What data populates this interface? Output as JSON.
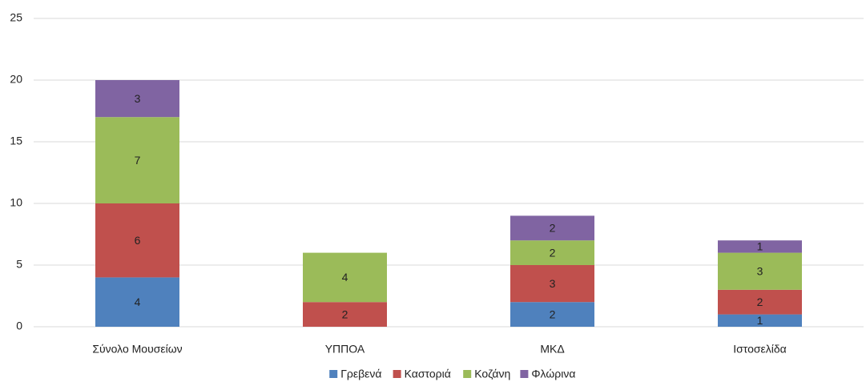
{
  "chart_data": {
    "type": "stacked_bar",
    "categories": [
      "Σύνολο Μουσείων",
      "ΥΠΠΟΑ",
      "ΜΚΔ",
      "Ιστοσελίδα"
    ],
    "series": [
      {
        "name": "Γρεβενά",
        "color": "#4f81bd",
        "values": [
          4,
          0,
          2,
          1
        ]
      },
      {
        "name": "Καστοριά",
        "color": "#c0504d",
        "values": [
          6,
          2,
          3,
          2
        ]
      },
      {
        "name": "Κοζάνη",
        "color": "#9bbb59",
        "values": [
          7,
          4,
          2,
          3
        ]
      },
      {
        "name": "Φλώρινα",
        "color": "#8064a2",
        "values": [
          3,
          0,
          2,
          1
        ]
      }
    ],
    "ylim": [
      0,
      25
    ],
    "yticks": [
      0,
      5,
      10,
      15,
      20,
      25
    ],
    "grid": true,
    "legend": "bottom"
  }
}
